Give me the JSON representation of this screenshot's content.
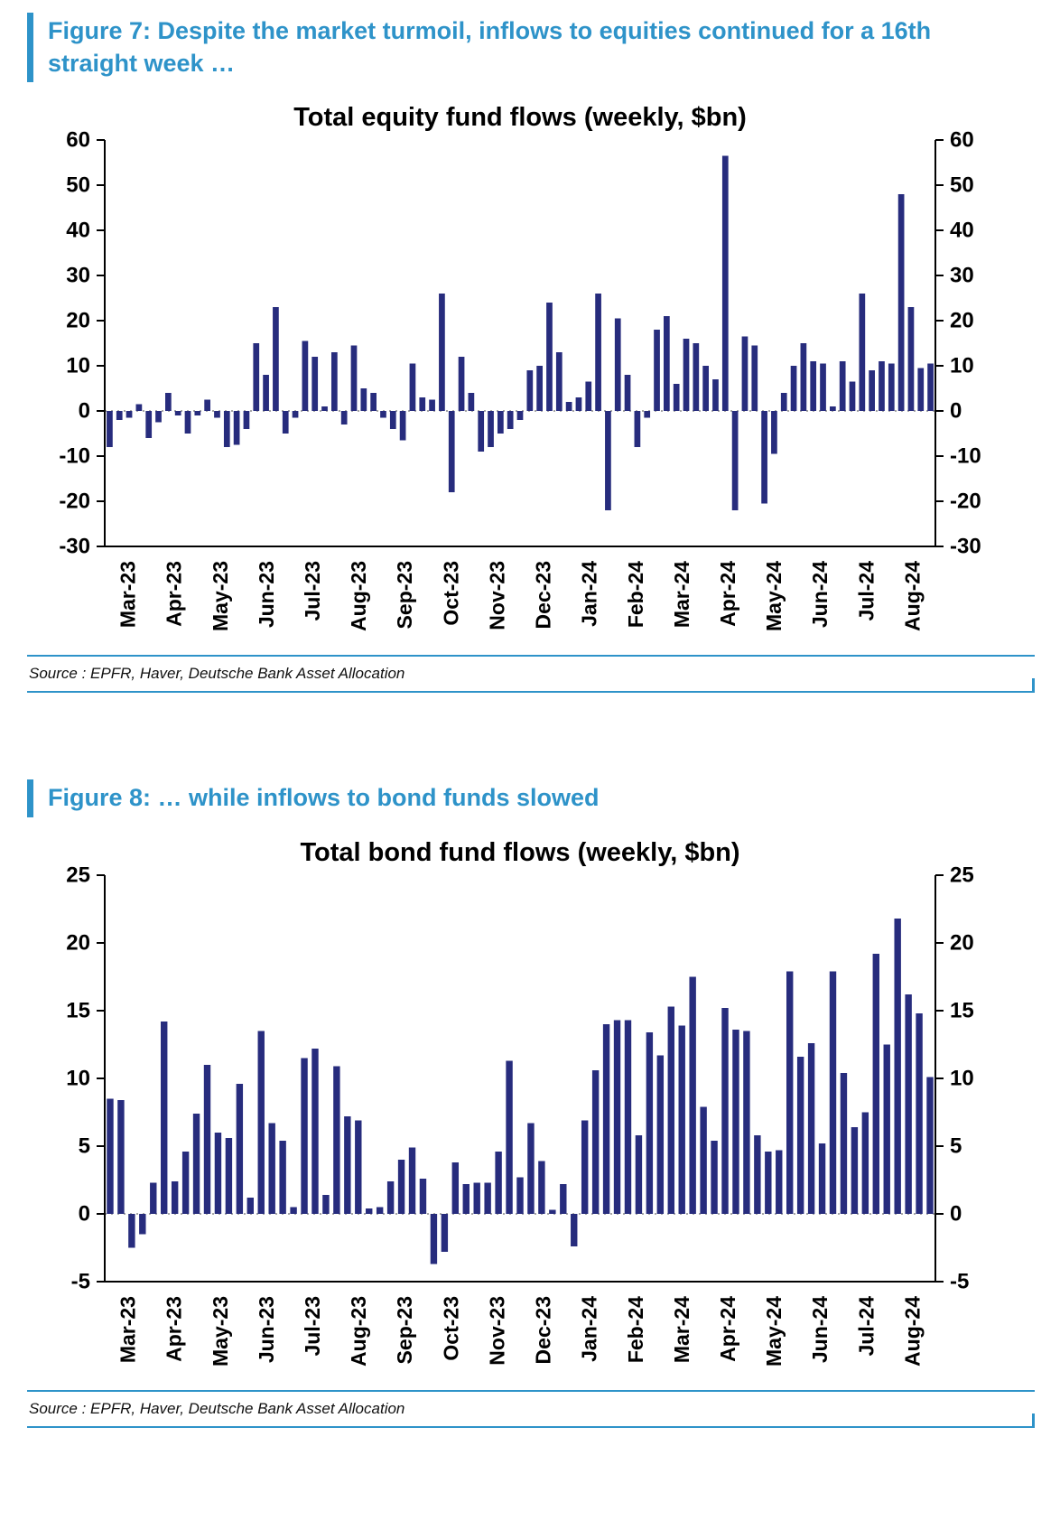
{
  "colors": {
    "accent": "#2e93c9",
    "bar": "#272c7d",
    "zero_line": "#8a8a8a",
    "axis": "#000000"
  },
  "figures": [
    {
      "header": "Figure 7: Despite the market turmoil, inflows to equities continued for a 16th straight week …",
      "source": "Source : EPFR, Haver, Deutsche Bank Asset Allocation"
    },
    {
      "header": "Figure 8: … while inflows to bond funds slowed",
      "source": "Source : EPFR, Haver, Deutsche Bank Asset Allocation"
    }
  ],
  "chart_data": [
    {
      "id": "equity-fund-flows",
      "type": "bar",
      "title": "Total equity fund flows (weekly, $bn)",
      "frequency": "weekly",
      "ylabel": "$bn",
      "ylim": [
        -30,
        60
      ],
      "ytick_step": 10,
      "grid": false,
      "zero_line": "dotted",
      "legend": "none",
      "x_labels": [
        "Mar-23",
        "Apr-23",
        "May-23",
        "Jun-23",
        "Jul-23",
        "Aug-23",
        "Sep-23",
        "Oct-23",
        "Nov-23",
        "Dec-23",
        "Jan-24",
        "Feb-24",
        "Mar-24",
        "Apr-24",
        "May-24",
        "Jun-24",
        "Jul-24",
        "Aug-24"
      ],
      "values": [
        -8,
        -2,
        -1.5,
        1.5,
        -6,
        -2.5,
        4,
        -1,
        -5,
        -1,
        2.5,
        -1.5,
        -8,
        -7.5,
        -4,
        15,
        8,
        23,
        -5,
        -1.5,
        15.5,
        12,
        1,
        13,
        -3,
        14.5,
        5,
        4,
        -1.5,
        -4,
        -6.5,
        10.5,
        3,
        2.5,
        26,
        -18,
        12,
        4,
        -9,
        -8,
        -5,
        -4,
        -2,
        9,
        10,
        24,
        13,
        2,
        3,
        6.5,
        26,
        -22,
        20.5,
        8,
        -8,
        -1.5,
        18,
        21,
        6,
        16,
        15,
        10,
        7,
        56.5,
        -22,
        16.5,
        14.5,
        -20.5,
        -9.5,
        4,
        10,
        15,
        11,
        10.5,
        1,
        11,
        6.5,
        26,
        9,
        11,
        10.5,
        48,
        23,
        9.5,
        10.5
      ]
    },
    {
      "id": "bond-fund-flows",
      "type": "bar",
      "title": "Total bond fund flows (weekly, $bn)",
      "frequency": "weekly",
      "ylabel": "$bn",
      "ylim": [
        -5,
        25
      ],
      "ytick_step": 5,
      "grid": false,
      "zero_line": "dotted",
      "legend": "none",
      "x_labels": [
        "Mar-23",
        "Apr-23",
        "May-23",
        "Jun-23",
        "Jul-23",
        "Aug-23",
        "Sep-23",
        "Oct-23",
        "Nov-23",
        "Dec-23",
        "Jan-24",
        "Feb-24",
        "Mar-24",
        "Apr-24",
        "May-24",
        "Jun-24",
        "Jul-24",
        "Aug-24"
      ],
      "values": [
        8.5,
        8.4,
        -2.5,
        -1.5,
        2.3,
        14.2,
        2.4,
        4.6,
        7.4,
        11,
        6,
        5.6,
        9.6,
        1.2,
        13.5,
        6.7,
        5.4,
        0.5,
        11.5,
        12.2,
        1.4,
        10.9,
        7.2,
        6.9,
        0.4,
        0.5,
        2.4,
        4,
        4.9,
        2.6,
        -3.7,
        -2.8,
        3.8,
        2.2,
        2.3,
        2.3,
        4.6,
        11.3,
        2.7,
        6.7,
        3.9,
        0.3,
        2.2,
        -2.4,
        6.9,
        10.6,
        14,
        14.3,
        14.3,
        5.8,
        13.4,
        11.7,
        15.3,
        13.9,
        17.5,
        7.9,
        5.4,
        15.2,
        13.6,
        13.5,
        5.8,
        4.6,
        4.7,
        17.9,
        11.6,
        12.6,
        5.2,
        17.9,
        10.4,
        6.4,
        7.5,
        19.2,
        12.5,
        21.8,
        16.2,
        14.8,
        10.1
      ]
    }
  ]
}
